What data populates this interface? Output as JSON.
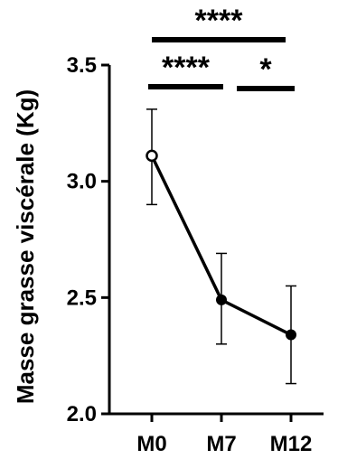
{
  "chart_data": {
    "type": "line",
    "ylabel": "Masse grasse viscérale (Kg)",
    "xlabel": "",
    "categories": [
      "M0",
      "M7",
      "M12"
    ],
    "series": [
      {
        "values": [
          3.11,
          2.49,
          2.34
        ],
        "error_high": [
          3.31,
          2.69,
          2.55
        ],
        "error_low": [
          2.9,
          2.3,
          2.13
        ],
        "markers": [
          "open-circle",
          "filled-circle",
          "filled-circle"
        ]
      }
    ],
    "ylim": [
      2.0,
      3.5
    ],
    "yticks": [
      2.0,
      2.5,
      3.0,
      3.5
    ],
    "ytick_labels": [
      "2.0",
      "2.5",
      "3.0",
      "3.5"
    ],
    "significance": [
      {
        "from": "M0",
        "to": "M12",
        "label": "****"
      },
      {
        "from": "M0",
        "to": "M7",
        "label": "****"
      },
      {
        "from": "M7",
        "to": "M12",
        "label": "*"
      }
    ],
    "grid": false
  }
}
